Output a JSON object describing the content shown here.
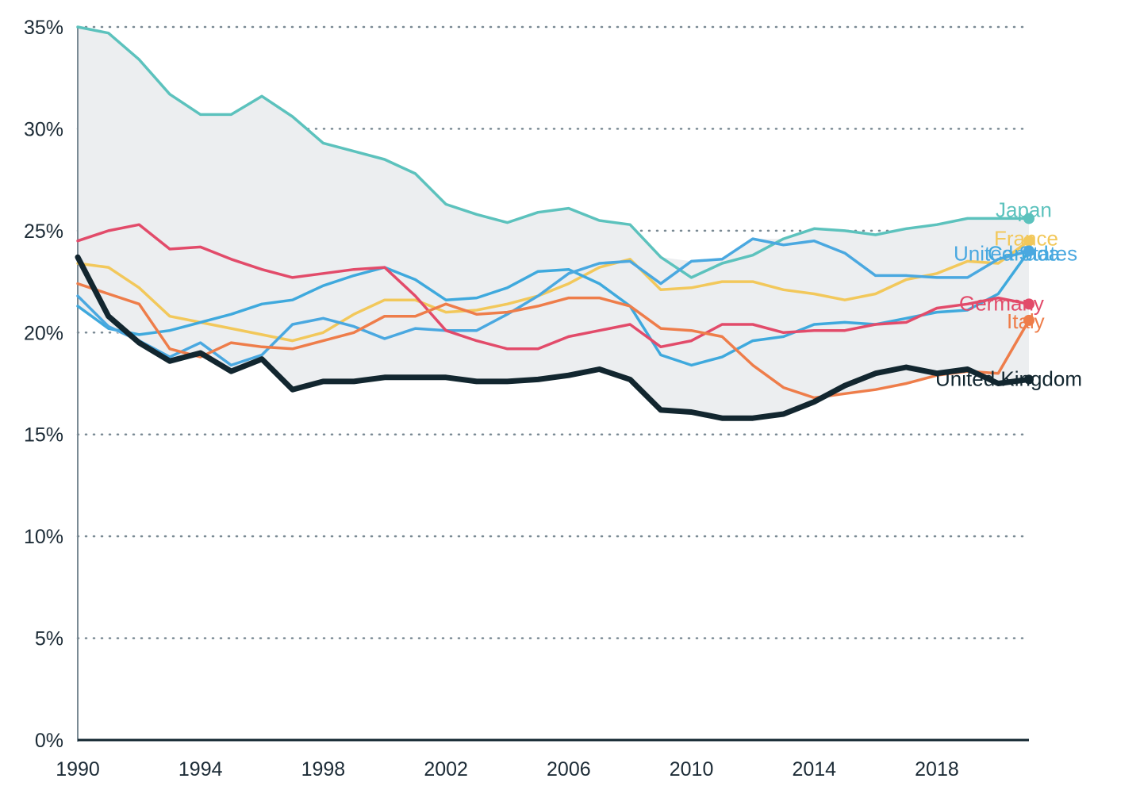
{
  "chart_data": {
    "type": "line",
    "title": "",
    "xlabel": "",
    "ylabel": "",
    "xlim": [
      1990,
      2021
    ],
    "ylim": [
      0,
      35
    ],
    "y_ticks": [
      0,
      5,
      10,
      15,
      20,
      25,
      30,
      35
    ],
    "y_tick_labels": [
      "0%",
      "5%",
      "10%",
      "15%",
      "20%",
      "25%",
      "30%",
      "35%"
    ],
    "x_ticks": [
      1990,
      1994,
      1998,
      2002,
      2006,
      2010,
      2014,
      2018
    ],
    "x_tick_labels": [
      "1990",
      "1994",
      "1998",
      "2002",
      "2006",
      "2010",
      "2014",
      "2018"
    ],
    "grid": "horizontal dotted",
    "shaded_band": "range between the highest and lowest series",
    "x": [
      1990,
      1991,
      1992,
      1993,
      1994,
      1995,
      1996,
      1997,
      1998,
      1999,
      2000,
      2001,
      2002,
      2003,
      2004,
      2005,
      2006,
      2007,
      2008,
      2009,
      2010,
      2011,
      2012,
      2013,
      2014,
      2015,
      2016,
      2017,
      2018,
      2019,
      2020,
      2021
    ],
    "series": [
      {
        "name": "Japan",
        "color": "#5cc2bd",
        "values": [
          35.0,
          34.7,
          33.4,
          31.7,
          30.7,
          30.7,
          31.6,
          30.6,
          29.3,
          28.9,
          28.5,
          27.8,
          26.3,
          25.8,
          25.4,
          25.9,
          26.1,
          25.5,
          25.3,
          23.7,
          22.7,
          23.4,
          23.8,
          24.6,
          25.1,
          25.0,
          24.8,
          25.1,
          25.3,
          25.6,
          25.6,
          25.6
        ],
        "label": "Japan"
      },
      {
        "name": "France",
        "color": "#f2c85b",
        "values": [
          23.4,
          23.2,
          22.2,
          20.8,
          20.5,
          20.2,
          19.9,
          19.6,
          20.0,
          20.9,
          21.6,
          21.6,
          21.0,
          21.1,
          21.4,
          21.8,
          22.4,
          23.2,
          23.6,
          22.1,
          22.2,
          22.5,
          22.5,
          22.1,
          21.9,
          21.6,
          21.9,
          22.6,
          22.9,
          23.5,
          23.4,
          24.5
        ],
        "label": "France"
      },
      {
        "name": "Canada",
        "color": "#3fa9dd",
        "values": [
          21.3,
          20.2,
          19.9,
          20.1,
          20.5,
          20.9,
          21.4,
          21.6,
          22.3,
          22.8,
          23.2,
          22.6,
          21.6,
          21.7,
          22.2,
          23.0,
          23.1,
          22.4,
          21.3,
          18.9,
          18.4,
          18.8,
          19.6,
          19.8,
          20.4,
          20.5,
          20.4,
          20.7,
          21.0,
          21.1,
          21.9,
          24.0
        ],
        "label": "Canada"
      },
      {
        "name": "United States",
        "color": "#4aa8e0",
        "values": [
          21.8,
          20.3,
          19.6,
          18.8,
          19.5,
          18.4,
          18.9,
          20.4,
          20.7,
          20.3,
          19.7,
          20.2,
          20.1,
          20.1,
          20.9,
          21.8,
          22.9,
          23.4,
          23.5,
          22.4,
          23.5,
          23.6,
          24.6,
          24.3,
          24.5,
          23.9,
          22.8,
          22.8,
          22.7,
          22.7,
          23.6,
          24.0
        ],
        "label": "United States"
      },
      {
        "name": "Germany",
        "color": "#e24b6a",
        "values": [
          24.5,
          25.0,
          25.3,
          24.1,
          24.2,
          23.6,
          23.1,
          22.7,
          22.9,
          23.1,
          23.2,
          21.8,
          20.1,
          19.6,
          19.2,
          19.2,
          19.8,
          20.1,
          20.4,
          19.3,
          19.6,
          20.4,
          20.4,
          20.0,
          20.1,
          20.1,
          20.4,
          20.5,
          21.2,
          21.4,
          21.7,
          21.4
        ],
        "label": "Germany"
      },
      {
        "name": "Italy",
        "color": "#ee7d4a",
        "values": [
          22.4,
          21.9,
          21.4,
          19.2,
          18.8,
          19.5,
          19.3,
          19.2,
          19.6,
          20.0,
          20.8,
          20.8,
          21.4,
          20.9,
          21.0,
          21.3,
          21.7,
          21.7,
          21.3,
          20.2,
          20.1,
          19.8,
          18.4,
          17.3,
          16.8,
          17.0,
          17.2,
          17.5,
          17.9,
          18.1,
          18.0,
          20.6
        ],
        "label": "Italy"
      },
      {
        "name": "United Kingdom",
        "color": "#12262f",
        "values": [
          23.7,
          20.8,
          19.5,
          18.6,
          19.0,
          18.1,
          18.7,
          17.2,
          17.6,
          17.6,
          17.8,
          17.8,
          17.8,
          17.6,
          17.6,
          17.7,
          17.9,
          18.2,
          17.7,
          16.2,
          16.1,
          15.8,
          15.8,
          16.0,
          16.6,
          17.4,
          18.0,
          18.3,
          18.0,
          18.2,
          17.5,
          17.7
        ],
        "label": "United Kingdom"
      }
    ]
  }
}
